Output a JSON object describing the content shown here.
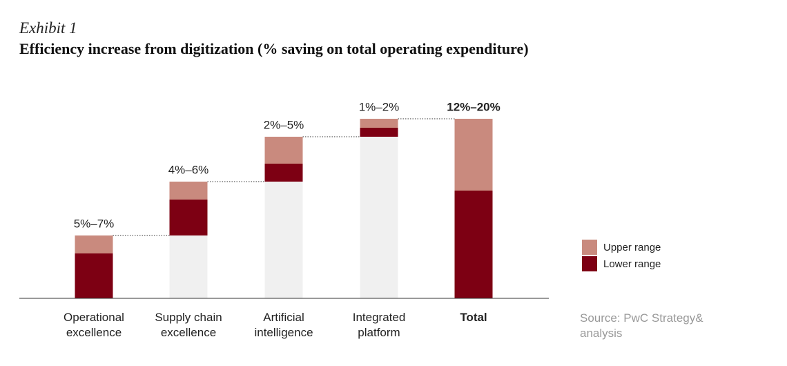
{
  "chart_data": {
    "type": "waterfall",
    "kicker": "Exhibit 1",
    "title": "Efficiency increase from digitization (% saving on total operating expenditure)",
    "categories": [
      "Operational excellence",
      "Supply chain excellence",
      "Artificial intelligence",
      "Integrated platform",
      "Total"
    ],
    "series": [
      {
        "name": "Lower range",
        "color": "#7d0013",
        "values": [
          5,
          4,
          2,
          1,
          12
        ]
      },
      {
        "name": "Upper range",
        "color": "#c98a7e",
        "values": [
          2,
          2,
          3,
          1,
          8
        ]
      }
    ],
    "range_labels": [
      "5%–7%",
      "4%–6%",
      "2%–5%",
      "1%–2%",
      "12%–20%"
    ],
    "ylim": [
      0,
      20
    ],
    "source": "Source: PwC Strategy& analysis"
  }
}
